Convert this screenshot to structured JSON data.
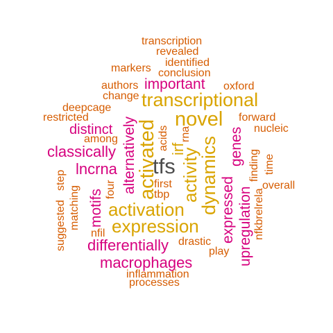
{
  "words": {
    "tfs": "tfs",
    "transcriptional": "transcriptional",
    "novel": "novel",
    "expression": "expression",
    "activation": "activation",
    "activated": "activated",
    "activity": "activity",
    "dynamics": "dynamics",
    "important": "important",
    "macrophages": "macrophages",
    "differentially": "differentially",
    "classically": "classically",
    "distinct": "distinct",
    "lncrna": "lncrna",
    "motifs": "motifs",
    "alternatively": "alternatively",
    "irf": "irf",
    "expressed": "expressed",
    "upregulation": "upregulation",
    "genes": "genes",
    "transcription": "transcription",
    "revealed": "revealed",
    "identified": "identified",
    "markers": "markers",
    "conclusion": "conclusion",
    "authors": "authors",
    "oxford": "oxford",
    "change": "change",
    "deepcage": "deepcage",
    "restricted": "restricted",
    "forward": "forward",
    "nucleic": "nucleic",
    "among": "among",
    "acids": "acids",
    "rna": "rna",
    "finding": "finding",
    "time": "time",
    "overall": "overall",
    "nfkbrelrela": "nfkbrelrela",
    "first": "first",
    "tbp": "tbp",
    "four": "four",
    "suggested": "suggested",
    "step": "step",
    "matching": "matching",
    "nfil": "nfil",
    "drastic": "drastic",
    "play": "play",
    "inflammation": "inflammation",
    "processes": "processes"
  },
  "colors": {
    "dark": "#4d4d4d",
    "gold": "#d9a400",
    "magenta": "#d6007e",
    "orange": "#d65c00"
  }
}
